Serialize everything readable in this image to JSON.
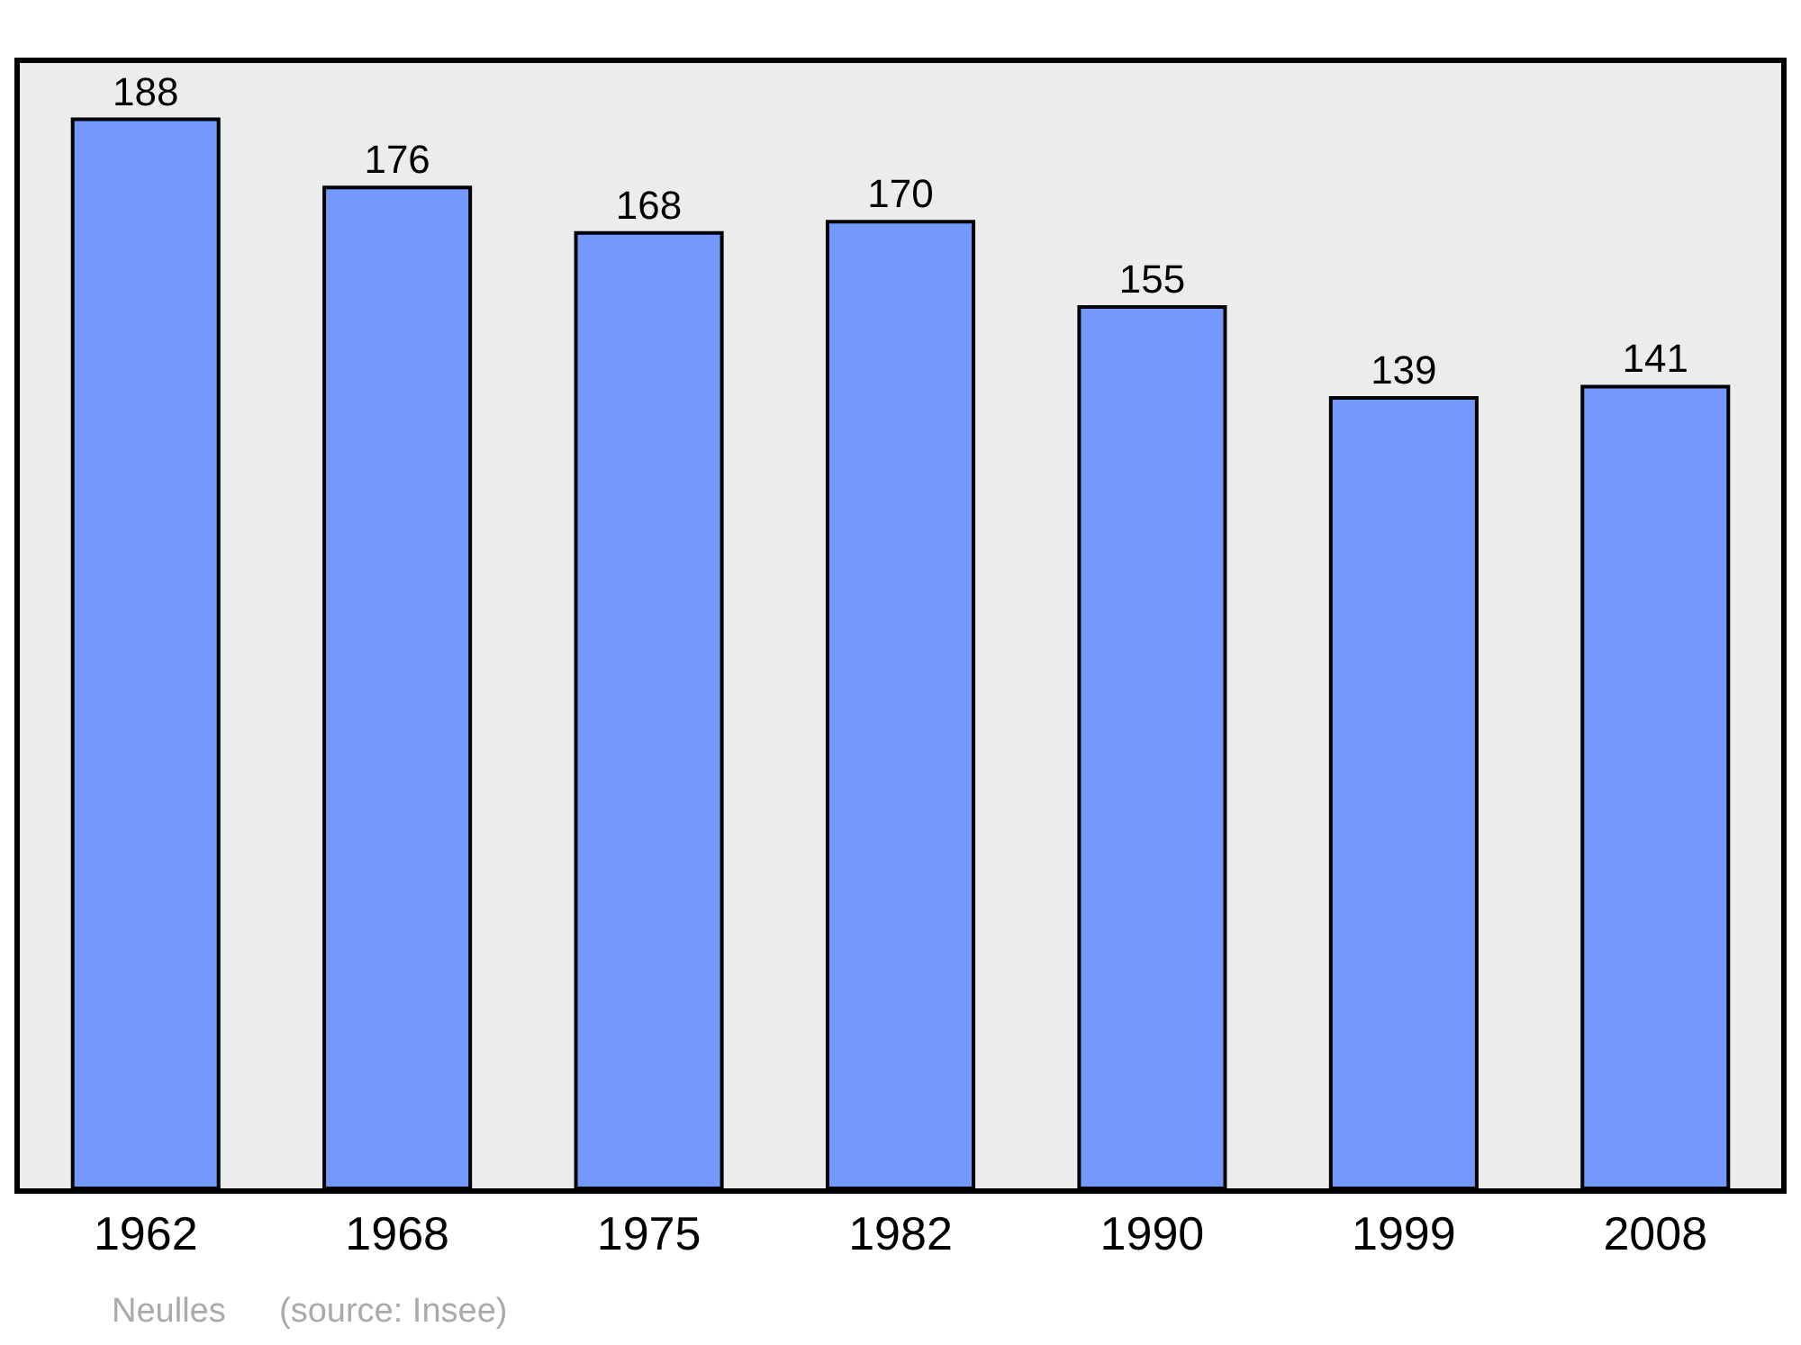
{
  "chart_data": {
    "type": "bar",
    "categories": [
      "1962",
      "1968",
      "1975",
      "1982",
      "1990",
      "1999",
      "2008"
    ],
    "values": [
      188,
      176,
      168,
      170,
      155,
      139,
      141
    ],
    "color": "#7399ff",
    "data_labels": true,
    "grid": false,
    "legend": false,
    "annotations": [
      "Neulles",
      "(source: Insee)"
    ]
  }
}
